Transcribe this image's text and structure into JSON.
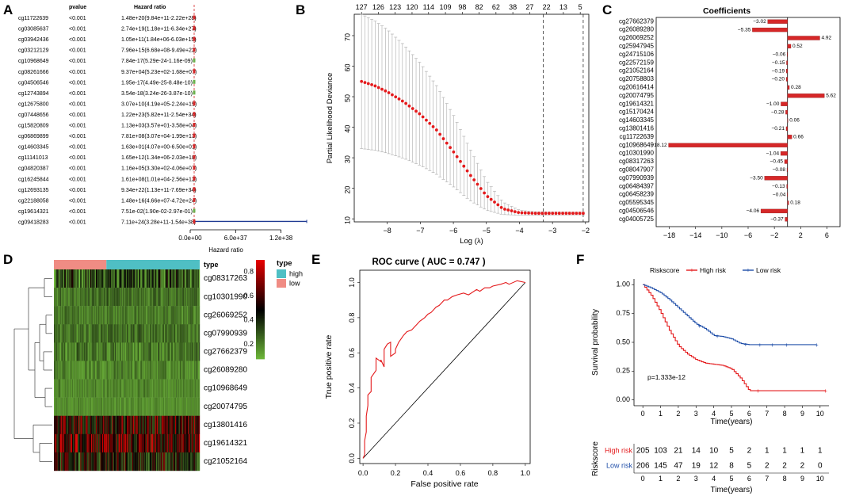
{
  "panels": {
    "A": "A",
    "B": "B",
    "C": "C",
    "D": "D",
    "E": "E",
    "F": "F"
  },
  "chart_data": [
    {
      "panel": "A",
      "type": "forest",
      "headers": {
        "gene": "",
        "pvalue": "pvalue",
        "hr": "Hazard ratio"
      },
      "rows": [
        {
          "gene": "cg11722639",
          "pvalue": "<0.001",
          "hr": "1.48e+20(9.84e+11-2.22e+28)",
          "color": "#d62728"
        },
        {
          "gene": "cg03085637",
          "pvalue": "<0.001",
          "hr": "2.74e+19(1.18e+11-6.34e+27)",
          "color": "#d62728"
        },
        {
          "gene": "cg03942436",
          "pvalue": "<0.001",
          "hr": "1.05e+11(1.84e+06-6.03e+15)",
          "color": "#d62728"
        },
        {
          "gene": "cg03212129",
          "pvalue": "<0.001",
          "hr": "7.96e+15(6.68e+08-9.49e+22)",
          "color": "#d62728"
        },
        {
          "gene": "cg10968649",
          "pvalue": "<0.001",
          "hr": "7.84e-17(5.29e-24-1.16e-09)",
          "color": "#6ab04c"
        },
        {
          "gene": "cg08261666",
          "pvalue": "<0.001",
          "hr": "9.37e+04(5.23e+02-1.68e+07)",
          "color": "#d62728"
        },
        {
          "gene": "cg04506546",
          "pvalue": "<0.001",
          "hr": "1.95e-17(4.49e-25-8.48e-10)",
          "color": "#6ab04c"
        },
        {
          "gene": "cg12743894",
          "pvalue": "<0.001",
          "hr": "3.54e-18(3.24e-26-3.87e-10)",
          "color": "#6ab04c"
        },
        {
          "gene": "cg12675800",
          "pvalue": "<0.001",
          "hr": "3.07e+10(4.19e+05-2.24e+15)",
          "color": "#d62728"
        },
        {
          "gene": "cg07448656",
          "pvalue": "<0.001",
          "hr": "1.22e+23(5.82e+11-2.54e+34)",
          "color": "#d62728"
        },
        {
          "gene": "cg15820809",
          "pvalue": "<0.001",
          "hr": "1.13e+03(3.57e+01-3.58e+04)",
          "color": "#d62728"
        },
        {
          "gene": "cg06869899",
          "pvalue": "<0.001",
          "hr": "7.81e+08(3.07e+04-1.99e+13)",
          "color": "#d62728"
        },
        {
          "gene": "cg14603345",
          "pvalue": "<0.001",
          "hr": "1.63e+01(4.07e+00-6.50e+01)",
          "color": "#d62728"
        },
        {
          "gene": "cg11141013",
          "pvalue": "<0.001",
          "hr": "1.65e+12(1.34e+06-2.03e+18)",
          "color": "#d62728"
        },
        {
          "gene": "cg04820387",
          "pvalue": "<0.001",
          "hr": "1.16e+05(3.30e+02-4.06e+07)",
          "color": "#d62728"
        },
        {
          "gene": "cg16245844",
          "pvalue": "<0.001",
          "hr": "1.61e+08(1.01e+04-2.56e+12)",
          "color": "#d62728"
        },
        {
          "gene": "cg12693135",
          "pvalue": "<0.001",
          "hr": "9.34e+22(1.13e+11-7.69e+34)",
          "color": "#d62728"
        },
        {
          "gene": "cg22188058",
          "pvalue": "<0.001",
          "hr": "1.48e+16(4.66e+07-4.72e+24)",
          "color": "#d62728"
        },
        {
          "gene": "cg19614321",
          "pvalue": "<0.001",
          "hr": "7.51e-02(1.90e-02-2.97e-01)",
          "color": "#6ab04c"
        },
        {
          "gene": "cg09418283",
          "pvalue": "<0.001",
          "hr": "7.11e+24(3.28e+11-1.54e+38)",
          "color": "#d62728",
          "ci_upper": 1.54e+38
        }
      ],
      "xaxis": {
        "ticks": [
          "0.0e+00",
          "6.0e+37",
          "1.2e+38"
        ],
        "tick_values": [
          0,
          6e+37,
          1.2e+38
        ],
        "range": [
          0,
          1.55e+38
        ],
        "label": "Hazard ratio"
      }
    },
    {
      "panel": "B",
      "type": "line_errorbar",
      "xlabel": "Log (λ)",
      "ylabel": "Partial Likelihood Deviance",
      "xlim": [
        -9,
        -1.9
      ],
      "ylim": [
        9,
        77
      ],
      "xticks": [
        -8,
        -7,
        -6,
        -5,
        -4,
        -3,
        -2
      ],
      "yticks": [
        10,
        20,
        30,
        40,
        50,
        60,
        70
      ],
      "top_ticks": {
        "labels": [
          "127",
          "126",
          "123",
          "120",
          "114",
          "109",
          "98",
          "82",
          "62",
          "38",
          "27",
          "22",
          "13",
          "5"
        ],
        "positions": [
          -8.78,
          -8.27,
          -7.76,
          -7.25,
          -6.75,
          -6.24,
          -5.73,
          -5.22,
          -4.71,
          -4.2,
          -3.69,
          -3.18,
          -2.67,
          -2.16
        ]
      },
      "vlines": [
        -3.28,
        -2.07
      ],
      "curve": {
        "x0": -8.78,
        "x1": -2.07,
        "n": 66,
        "mean_knots": [
          [
            -8.78,
            55
          ],
          [
            -8.4,
            53.7
          ],
          [
            -8.0,
            51.6
          ],
          [
            -7.5,
            48.3
          ],
          [
            -7.0,
            44.2
          ],
          [
            -6.5,
            39
          ],
          [
            -6.0,
            32
          ],
          [
            -5.5,
            24.5
          ],
          [
            -5.0,
            17.6
          ],
          [
            -4.5,
            13.3
          ],
          [
            -4.0,
            12.0
          ],
          [
            -3.5,
            11.8
          ],
          [
            -2.07,
            11.8
          ]
        ],
        "upper_knots": [
          [
            -8.78,
            77
          ],
          [
            -8.4,
            75
          ],
          [
            -8.0,
            72
          ],
          [
            -7.5,
            67
          ],
          [
            -7.0,
            61
          ],
          [
            -6.5,
            53.5
          ],
          [
            -6.0,
            44
          ],
          [
            -5.5,
            33
          ],
          [
            -5.0,
            22.5
          ],
          [
            -4.5,
            15.5
          ],
          [
            -4.0,
            12.8
          ],
          [
            -3.5,
            12.3
          ],
          [
            -2.07,
            12.2
          ]
        ],
        "lower_knots": [
          [
            -8.78,
            33
          ],
          [
            -8.4,
            32.5
          ],
          [
            -8.0,
            31.5
          ],
          [
            -7.5,
            29.8
          ],
          [
            -7.0,
            27.5
          ],
          [
            -6.5,
            24.5
          ],
          [
            -6.0,
            20.5
          ],
          [
            -5.5,
            16
          ],
          [
            -5.0,
            12.8
          ],
          [
            -4.5,
            11.4
          ],
          [
            -4.0,
            11.2
          ],
          [
            -3.5,
            11.2
          ],
          [
            -2.07,
            11.3
          ]
        ]
      },
      "colors": {
        "mean": "#e41a1c",
        "error": "#aaaaaa"
      }
    },
    {
      "panel": "C",
      "type": "horizontal_bar",
      "title": "Coefficients",
      "categories": [
        "cg27662379",
        "cg26089280",
        "cg26069252",
        "cg25947945",
        "cg24715106",
        "cg22572159",
        "cg21052164",
        "cg20758803",
        "cg20616414",
        "cg20074795",
        "cg19614321",
        "cg15170424",
        "cg14603345",
        "cg13801416",
        "cg11722639",
        "cg10968649",
        "cg10301990",
        "cg08317263",
        "cg08047907",
        "cg07990939",
        "cg06484397",
        "cg06458239",
        "cg05595345",
        "cg04506546",
        "cg04005725"
      ],
      "values": [
        -3.02,
        -5.35,
        4.92,
        0.52,
        -0.06,
        -0.15,
        -0.19,
        -0.2,
        0.28,
        5.62,
        -1.0,
        -0.28,
        0.06,
        -0.21,
        0.66,
        -18.12,
        -1.04,
        -0.45,
        -0.08,
        -3.5,
        -0.13,
        -0.04,
        0.18,
        -4.06,
        -0.37
      ],
      "labels": [
        "−3.02",
        "−5.35",
        "4.92",
        "0.52",
        "−0.06",
        "−0.15",
        "−0.19",
        "−0.20",
        "0.28",
        "5.62",
        "−1.00",
        "−0.28",
        "0.06",
        "−0.21",
        "0.66",
        "−18.12",
        "−1.04",
        "−0.45",
        "−0.08",
        "−3.50",
        "−0.13",
        "−0.04",
        "0.18",
        "−4.06",
        "−0.37"
      ],
      "xlim": [
        -20,
        8
      ],
      "xticks": [
        -18,
        -14,
        -10,
        -6,
        -2,
        2,
        6
      ],
      "xtick_labels": [
        "−18",
        "−14",
        "−10",
        "−6",
        "−2",
        "2",
        "6"
      ],
      "color": "#d62728"
    },
    {
      "panel": "D",
      "type": "heatmap",
      "rows": [
        "cg08317263",
        "cg10301990",
        "cg26069252",
        "cg07990939",
        "cg27662379",
        "cg26089280",
        "cg10968649",
        "cg20074795",
        "cg13801416",
        "cg19614321",
        "cg21052164"
      ],
      "row_base": [
        0.3,
        0.25,
        0.22,
        0.24,
        0.22,
        0.2,
        0.2,
        0.18,
        0.55,
        0.6,
        0.45
      ],
      "row_var": [
        0.25,
        0.1,
        0.08,
        0.1,
        0.12,
        0.08,
        0.06,
        0.05,
        0.28,
        0.3,
        0.25
      ],
      "n_cols": 160,
      "group_split": 0.36,
      "annotation": {
        "label": "type",
        "groups": [
          {
            "name": "low",
            "color": "#f08c84"
          },
          {
            "name": "high",
            "color": "#4fbfc4"
          }
        ]
      },
      "colorbar": {
        "ticks": [
          "0.8",
          "0.6",
          "0.4",
          "0.2"
        ],
        "tick_values": [
          0.8,
          0.6,
          0.4,
          0.2
        ],
        "range": [
          0.08,
          0.9
        ],
        "colors": [
          "#6fba3a",
          "#000000",
          "#e60000"
        ]
      },
      "legend": {
        "title": "type",
        "items": [
          {
            "label": "high",
            "color": "#4fbfc4"
          },
          {
            "label": "low",
            "color": "#f08c84"
          }
        ]
      },
      "annotation_label": "type"
    },
    {
      "panel": "E",
      "type": "line",
      "title": "ROC curve ( AUC =  0.747 )",
      "xlabel": "False positive rate",
      "ylabel": "True positive rate",
      "xlim": [
        -0.02,
        1.03
      ],
      "ylim": [
        -0.03,
        1.07
      ],
      "xticks": [
        0.0,
        0.2,
        0.4,
        0.6,
        0.8,
        1.0
      ],
      "yticks": [
        0.0,
        0.2,
        0.4,
        0.6,
        0.8,
        1.0
      ],
      "tick_labels": [
        "0.0",
        "0.2",
        "0.4",
        "0.6",
        "0.8",
        "1.0"
      ],
      "fpr": [
        0.0,
        0.01,
        0.01,
        0.02,
        0.02,
        0.03,
        0.03,
        0.05,
        0.05,
        0.08,
        0.08,
        0.11,
        0.11,
        0.13,
        0.13,
        0.15,
        0.17,
        0.17,
        0.2,
        0.2,
        0.22,
        0.25,
        0.27,
        0.3,
        0.32,
        0.35,
        0.38,
        0.4,
        0.42,
        0.45,
        0.47,
        0.5,
        0.52,
        0.55,
        0.58,
        0.62,
        0.65,
        0.7,
        0.72,
        0.75,
        0.78,
        0.8,
        0.85,
        0.88,
        0.9,
        0.95,
        1.0
      ],
      "tpr": [
        0.0,
        0.02,
        0.1,
        0.15,
        0.24,
        0.3,
        0.36,
        0.38,
        0.46,
        0.5,
        0.57,
        0.55,
        0.56,
        0.52,
        0.62,
        0.65,
        0.66,
        0.58,
        0.6,
        0.62,
        0.66,
        0.7,
        0.72,
        0.73,
        0.75,
        0.78,
        0.8,
        0.82,
        0.83,
        0.86,
        0.87,
        0.9,
        0.9,
        0.92,
        0.93,
        0.94,
        0.93,
        0.96,
        0.95,
        0.97,
        0.97,
        0.98,
        0.99,
        1.0,
        0.99,
        1.01,
        1.0
      ],
      "colors": {
        "roc": "#e41a1c",
        "diag": "#000000"
      }
    },
    {
      "panel": "F",
      "type": "survival",
      "xlabel": "Time(years)",
      "ylabel": "Survival probability",
      "legend_title": "Riskscore",
      "pvalue_text": "p=1.333e-12",
      "xlim": [
        -0.5,
        10.5
      ],
      "ylim": [
        -0.05,
        1.05
      ],
      "xticks": [
        0,
        1,
        2,
        3,
        4,
        5,
        6,
        7,
        8,
        9,
        10
      ],
      "yticks": [
        0.0,
        0.25,
        0.5,
        0.75,
        1.0
      ],
      "ytick_labels": [
        "0.00",
        "0.25",
        "0.50",
        "0.75",
        "1.00"
      ],
      "series": [
        {
          "name": "High risk",
          "color": "#e41a1c",
          "knots": [
            [
              0,
              1.0
            ],
            [
              0.5,
              0.9
            ],
            [
              1.0,
              0.76
            ],
            [
              1.5,
              0.6
            ],
            [
              2.0,
              0.47
            ],
            [
              2.5,
              0.4
            ],
            [
              3.0,
              0.35
            ],
            [
              3.5,
              0.32
            ],
            [
              4.0,
              0.31
            ],
            [
              4.5,
              0.3
            ],
            [
              5.0,
              0.27
            ],
            [
              5.5,
              0.19
            ],
            [
              6.0,
              0.08
            ],
            [
              10.3,
              0.08
            ]
          ],
          "censor_t": [
            6.5,
            10.3
          ]
        },
        {
          "name": "Low risk",
          "color": "#1f4ea8",
          "knots": [
            [
              0,
              1.0
            ],
            [
              0.5,
              0.97
            ],
            [
              1.0,
              0.93
            ],
            [
              1.5,
              0.87
            ],
            [
              2.0,
              0.8
            ],
            [
              2.5,
              0.73
            ],
            [
              3.0,
              0.66
            ],
            [
              3.5,
              0.62
            ],
            [
              4.0,
              0.56
            ],
            [
              4.5,
              0.55
            ],
            [
              5.0,
              0.53
            ],
            [
              5.5,
              0.49
            ],
            [
              6.0,
              0.48
            ],
            [
              9.8,
              0.48
            ]
          ],
          "censor_t": [
            3.2,
            4.2,
            5.8,
            6.6,
            7.3,
            8.1,
            9.8
          ]
        }
      ],
      "risk_table": {
        "title": "Riskscore",
        "xlabel": "Time(years)",
        "rows": [
          {
            "name": "High risk",
            "color": "#e41a1c",
            "counts": [
              "205",
              "103",
              "21",
              "14",
              "10",
              "5",
              "2",
              "1",
              "1",
              "1",
              "1"
            ]
          },
          {
            "name": "Low risk",
            "color": "#1f4ea8",
            "counts": [
              "206",
              "145",
              "47",
              "19",
              "12",
              "8",
              "5",
              "2",
              "2",
              "2",
              "0"
            ]
          }
        ]
      }
    }
  ]
}
